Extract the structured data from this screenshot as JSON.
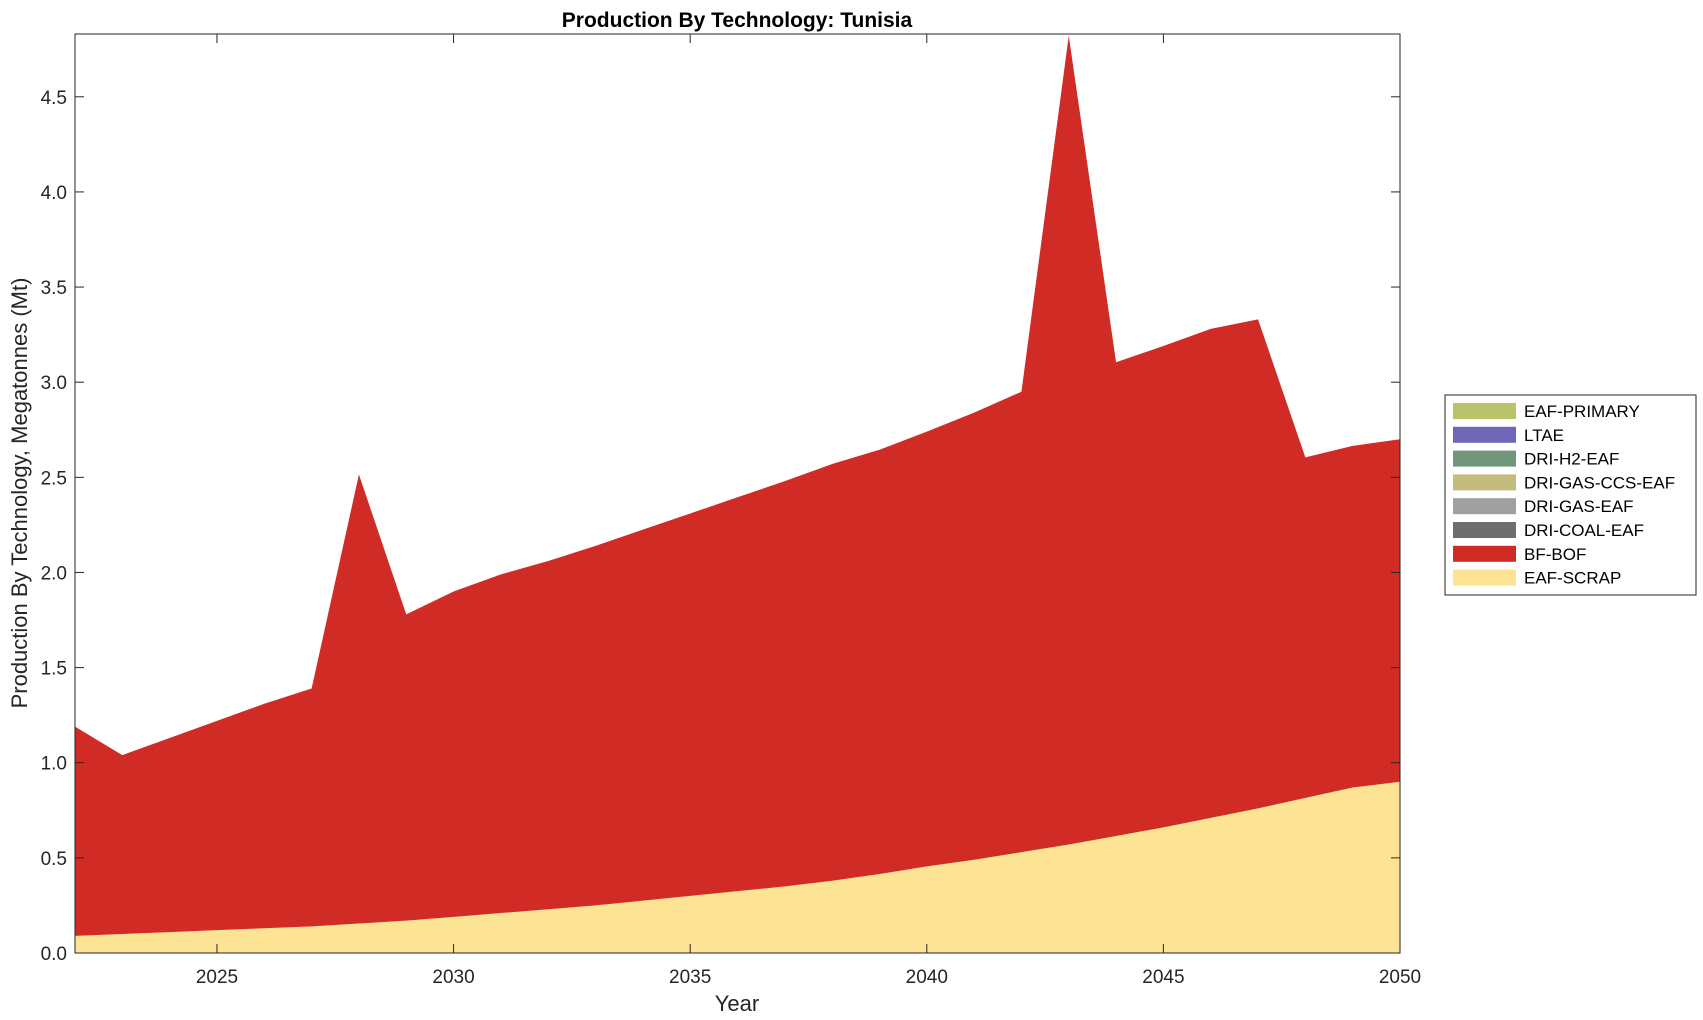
{
  "chart_data": {
    "type": "area",
    "stacked": true,
    "title": "Production By Technology: Tunisia",
    "xlabel": "Year",
    "ylabel": "Production By Technology, Megatonnes (Mt)",
    "xlim": [
      2022,
      2050
    ],
    "ylim": [
      0,
      4.83
    ],
    "xticks": [
      2025,
      2030,
      2035,
      2040,
      2045,
      2050
    ],
    "yticks": [
      0.0,
      0.5,
      1.0,
      1.5,
      2.0,
      2.5,
      3.0,
      3.5,
      4.0,
      4.5
    ],
    "ytick_labels": [
      "0.0",
      "0.5",
      "1.0",
      "1.5",
      "2.0",
      "2.5",
      "3.0",
      "3.5",
      "4.0",
      "4.5"
    ],
    "grid": false,
    "legend_position": "right",
    "x": [
      2022,
      2023,
      2024,
      2025,
      2026,
      2027,
      2028,
      2029,
      2030,
      2031,
      2032,
      2033,
      2034,
      2035,
      2036,
      2037,
      2038,
      2039,
      2040,
      2041,
      2042,
      2043,
      2044,
      2045,
      2046,
      2047,
      2048,
      2049,
      2050
    ],
    "series": [
      {
        "name": "EAF-SCRAP",
        "color": "#FDE394",
        "values": [
          0.09,
          0.1,
          0.11,
          0.12,
          0.13,
          0.14,
          0.155,
          0.17,
          0.19,
          0.21,
          0.23,
          0.25,
          0.275,
          0.3,
          0.325,
          0.35,
          0.38,
          0.415,
          0.455,
          0.49,
          0.53,
          0.57,
          0.615,
          0.66,
          0.71,
          0.76,
          0.815,
          0.87,
          0.9
        ]
      },
      {
        "name": "BF-BOF",
        "color": "#D12B26",
        "values": [
          1.1,
          0.94,
          1.02,
          1.1,
          1.18,
          1.25,
          2.36,
          1.61,
          1.71,
          1.78,
          1.83,
          1.89,
          1.95,
          2.01,
          2.07,
          2.13,
          2.19,
          2.23,
          2.285,
          2.35,
          2.42,
          4.25,
          2.49,
          2.53,
          2.57,
          2.57,
          1.79,
          1.795,
          1.8
        ]
      },
      {
        "name": "DRI-COAL-EAF",
        "color": "#6E6E6E",
        "values": [
          0,
          0,
          0,
          0,
          0,
          0,
          0,
          0,
          0,
          0,
          0,
          0,
          0,
          0,
          0,
          0,
          0,
          0,
          0,
          0,
          0,
          0,
          0,
          0,
          0,
          0,
          0,
          0,
          0
        ]
      },
      {
        "name": "DRI-GAS-EAF",
        "color": "#A0A0A0",
        "values": [
          0,
          0,
          0,
          0,
          0,
          0,
          0,
          0,
          0,
          0,
          0,
          0,
          0,
          0,
          0,
          0,
          0,
          0,
          0,
          0,
          0,
          0,
          0,
          0,
          0,
          0,
          0,
          0,
          0
        ]
      },
      {
        "name": "DRI-GAS-CCS-EAF",
        "color": "#C4BC7E",
        "values": [
          0,
          0,
          0,
          0,
          0,
          0,
          0,
          0,
          0,
          0,
          0,
          0,
          0,
          0,
          0,
          0,
          0,
          0,
          0,
          0,
          0,
          0,
          0,
          0,
          0,
          0,
          0,
          0,
          0
        ]
      },
      {
        "name": "DRI-H2-EAF",
        "color": "#71967A",
        "values": [
          0,
          0,
          0,
          0,
          0,
          0,
          0,
          0,
          0,
          0,
          0,
          0,
          0,
          0,
          0,
          0,
          0,
          0,
          0,
          0,
          0,
          0,
          0,
          0,
          0,
          0,
          0,
          0,
          0
        ]
      },
      {
        "name": "LTAE",
        "color": "#7066B8",
        "values": [
          0,
          0,
          0,
          0,
          0,
          0,
          0,
          0,
          0,
          0,
          0,
          0,
          0,
          0,
          0,
          0,
          0,
          0,
          0,
          0,
          0,
          0,
          0,
          0,
          0,
          0,
          0,
          0,
          0
        ]
      },
      {
        "name": "EAF-PRIMARY",
        "color": "#B8C36A",
        "values": [
          0,
          0,
          0,
          0,
          0,
          0,
          0,
          0,
          0,
          0,
          0,
          0,
          0,
          0,
          0,
          0,
          0,
          0,
          0,
          0,
          0,
          0,
          0,
          0,
          0,
          0,
          0,
          0,
          0
        ]
      }
    ],
    "legend_order": [
      "EAF-PRIMARY",
      "LTAE",
      "DRI-H2-EAF",
      "DRI-GAS-CCS-EAF",
      "DRI-GAS-EAF",
      "DRI-COAL-EAF",
      "BF-BOF",
      "EAF-SCRAP"
    ]
  }
}
